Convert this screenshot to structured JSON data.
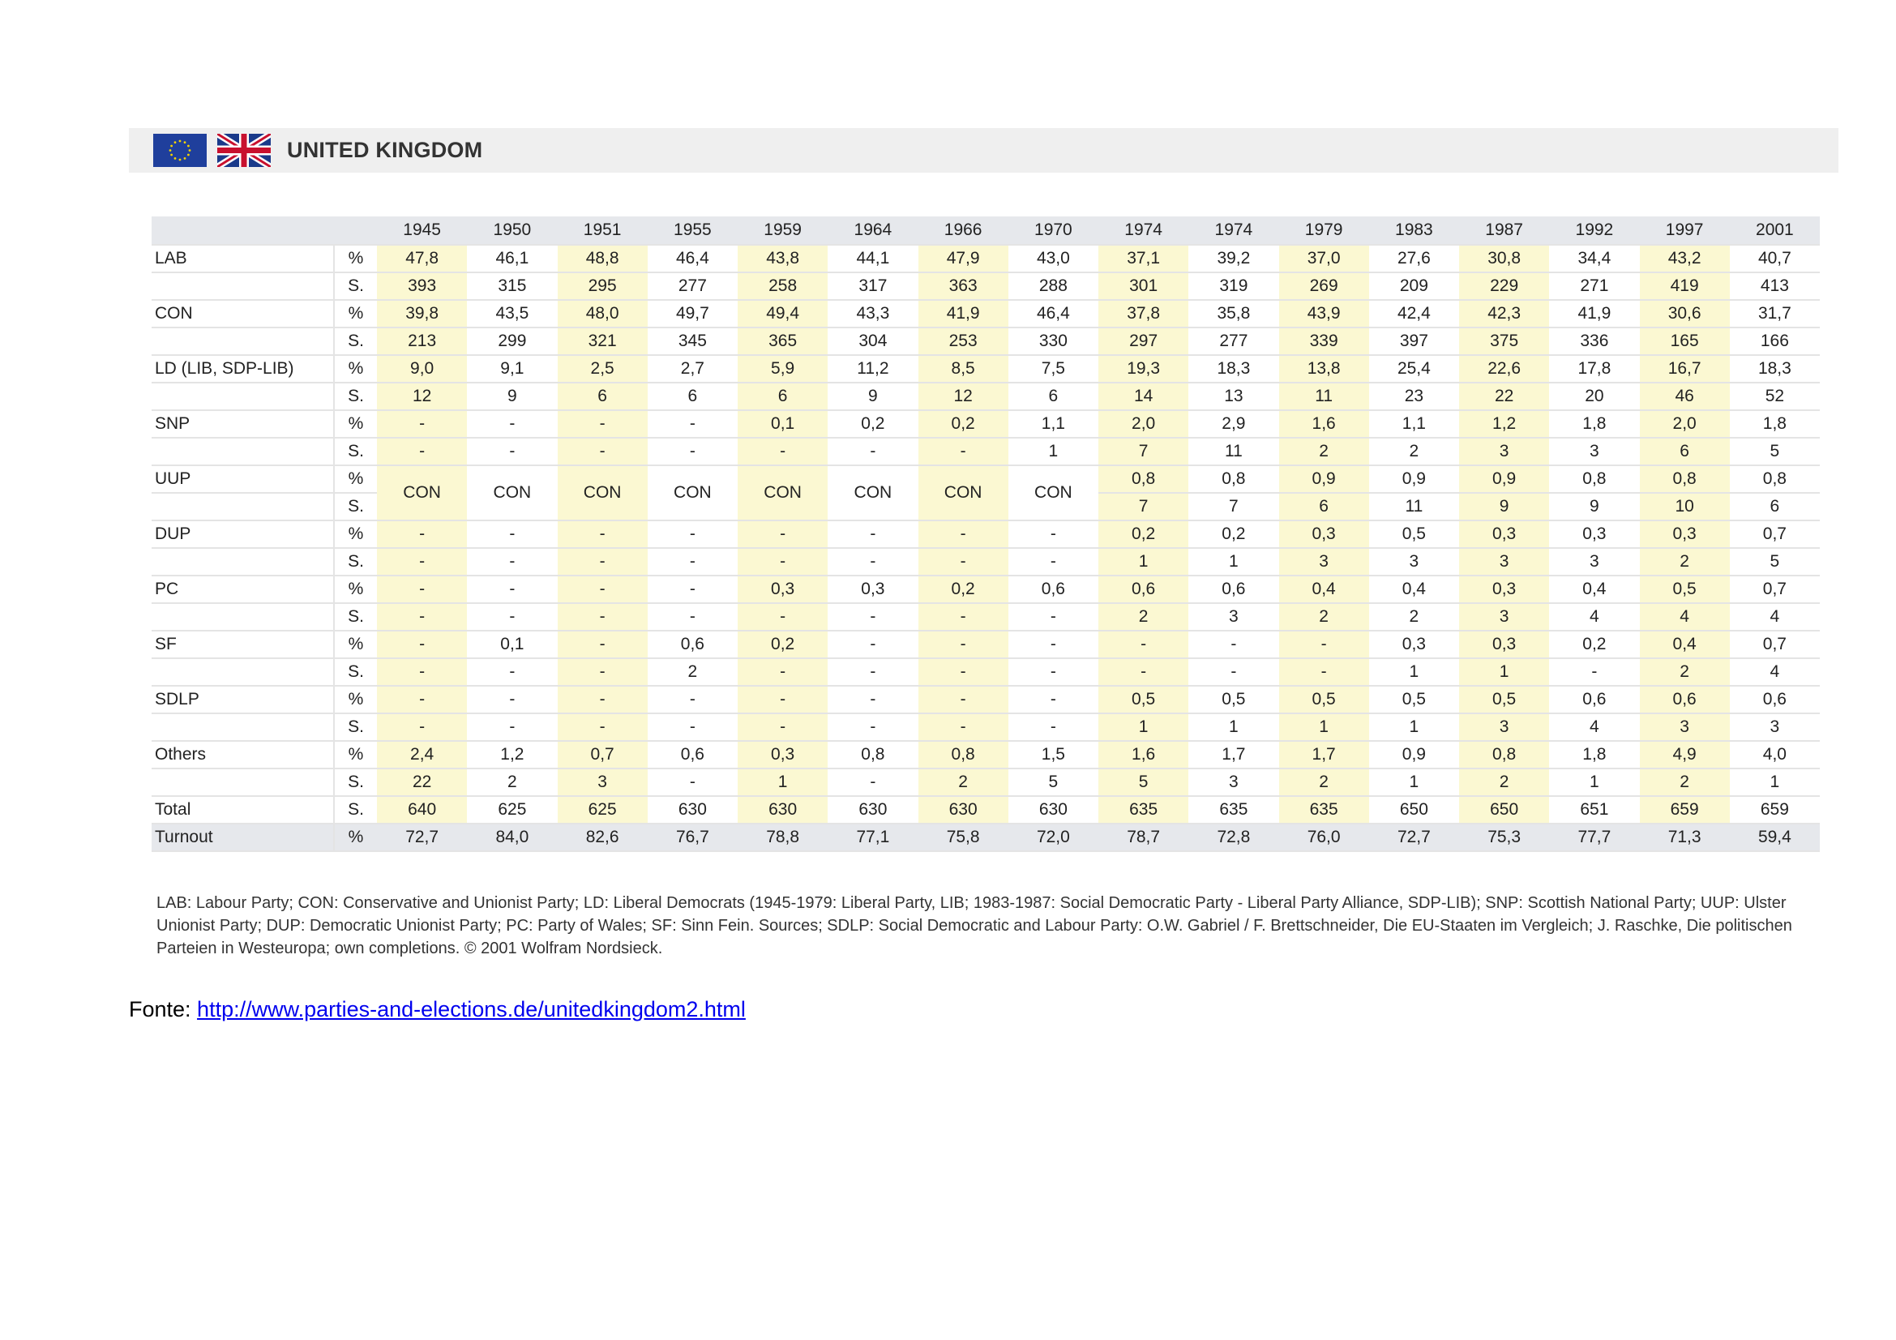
{
  "header": {
    "title": "UNITED KINGDOM",
    "icons": [
      "eu-flag-icon",
      "uk-flag-icon"
    ]
  },
  "colors": {
    "highlight": "#fbf8d2",
    "header_bg": "#e6e8ec",
    "title_bar": "#efefef",
    "link": "#0000ee"
  },
  "table": {
    "years": [
      "1945",
      "1950",
      "1951",
      "1955",
      "1959",
      "1964",
      "1966",
      "1970",
      "1974",
      "1974",
      "1979",
      "1983",
      "1987",
      "1992",
      "1997",
      "2001"
    ],
    "rows": [
      {
        "label": "LAB",
        "unit": "%",
        "values": [
          "47,8",
          "46,1",
          "48,8",
          "46,4",
          "43,8",
          "44,1",
          "47,9",
          "43,0",
          "37,1",
          "39,2",
          "37,0",
          "27,6",
          "30,8",
          "34,4",
          "43,2",
          "40,7"
        ]
      },
      {
        "label": "",
        "unit": "S.",
        "values": [
          "393",
          "315",
          "295",
          "277",
          "258",
          "317",
          "363",
          "288",
          "301",
          "319",
          "269",
          "209",
          "229",
          "271",
          "419",
          "413"
        ]
      },
      {
        "label": "CON",
        "unit": "%",
        "values": [
          "39,8",
          "43,5",
          "48,0",
          "49,7",
          "49,4",
          "43,3",
          "41,9",
          "46,4",
          "37,8",
          "35,8",
          "43,9",
          "42,4",
          "42,3",
          "41,9",
          "30,6",
          "31,7"
        ]
      },
      {
        "label": "",
        "unit": "S.",
        "values": [
          "213",
          "299",
          "321",
          "345",
          "365",
          "304",
          "253",
          "330",
          "297",
          "277",
          "339",
          "397",
          "375",
          "336",
          "165",
          "166"
        ]
      },
      {
        "label": "LD (LIB, SDP-LIB)",
        "unit": "%",
        "values": [
          "9,0",
          "9,1",
          "2,5",
          "2,7",
          "5,9",
          "11,2",
          "8,5",
          "7,5",
          "19,3",
          "18,3",
          "13,8",
          "25,4",
          "22,6",
          "17,8",
          "16,7",
          "18,3"
        ]
      },
      {
        "label": "",
        "unit": "S.",
        "values": [
          "12",
          "9",
          "6",
          "6",
          "6",
          "9",
          "12",
          "6",
          "14",
          "13",
          "11",
          "23",
          "22",
          "20",
          "46",
          "52"
        ]
      },
      {
        "label": "SNP",
        "unit": "%",
        "values": [
          "-",
          "-",
          "-",
          "-",
          "0,1",
          "0,2",
          "0,2",
          "1,1",
          "2,0",
          "2,9",
          "1,6",
          "1,1",
          "1,2",
          "1,8",
          "2,0",
          "1,8"
        ]
      },
      {
        "label": "",
        "unit": "S.",
        "values": [
          "-",
          "-",
          "-",
          "-",
          "-",
          "-",
          "-",
          "1",
          "7",
          "11",
          "2",
          "2",
          "3",
          "3",
          "6",
          "5"
        ]
      },
      {
        "label": "UUP",
        "unit": "%",
        "values": [
          "CON",
          "CON",
          "CON",
          "CON",
          "CON",
          "CON",
          "CON",
          "CON",
          "0,8",
          "0,8",
          "0,9",
          "0,9",
          "0,9",
          "0,8",
          "0,8",
          "0,8"
        ],
        "merge_down": 8
      },
      {
        "label": "",
        "unit": "S.",
        "values": [
          "",
          "",
          "",
          "",
          "",
          "",
          "",
          "",
          "7",
          "7",
          "6",
          "11",
          "9",
          "9",
          "10",
          "6"
        ]
      },
      {
        "label": "DUP",
        "unit": "%",
        "values": [
          "-",
          "-",
          "-",
          "-",
          "-",
          "-",
          "-",
          "-",
          "0,2",
          "0,2",
          "0,3",
          "0,5",
          "0,3",
          "0,3",
          "0,3",
          "0,7"
        ]
      },
      {
        "label": "",
        "unit": "S.",
        "values": [
          "-",
          "-",
          "-",
          "-",
          "-",
          "-",
          "-",
          "-",
          "1",
          "1",
          "3",
          "3",
          "3",
          "3",
          "2",
          "5"
        ]
      },
      {
        "label": "PC",
        "unit": "%",
        "values": [
          "-",
          "-",
          "-",
          "-",
          "0,3",
          "0,3",
          "0,2",
          "0,6",
          "0,6",
          "0,6",
          "0,4",
          "0,4",
          "0,3",
          "0,4",
          "0,5",
          "0,7"
        ]
      },
      {
        "label": "",
        "unit": "S.",
        "values": [
          "-",
          "-",
          "-",
          "-",
          "-",
          "-",
          "-",
          "-",
          "2",
          "3",
          "2",
          "2",
          "3",
          "4",
          "4",
          "4"
        ]
      },
      {
        "label": "SF",
        "unit": "%",
        "values": [
          "-",
          "0,1",
          "-",
          "0,6",
          "0,2",
          "-",
          "-",
          "-",
          "-",
          "-",
          "-",
          "0,3",
          "0,3",
          "0,2",
          "0,4",
          "0,7"
        ]
      },
      {
        "label": "",
        "unit": "S.",
        "values": [
          "-",
          "-",
          "-",
          "2",
          "-",
          "-",
          "-",
          "-",
          "-",
          "-",
          "-",
          "1",
          "1",
          "-",
          "2",
          "4"
        ]
      },
      {
        "label": "SDLP",
        "unit": "%",
        "values": [
          "-",
          "-",
          "-",
          "-",
          "-",
          "-",
          "-",
          "-",
          "0,5",
          "0,5",
          "0,5",
          "0,5",
          "0,5",
          "0,6",
          "0,6",
          "0,6"
        ]
      },
      {
        "label": "",
        "unit": "S.",
        "values": [
          "-",
          "-",
          "-",
          "-",
          "-",
          "-",
          "-",
          "-",
          "1",
          "1",
          "1",
          "1",
          "3",
          "4",
          "3",
          "3"
        ]
      },
      {
        "label": "Others",
        "unit": "%",
        "values": [
          "2,4",
          "1,2",
          "0,7",
          "0,6",
          "0,3",
          "0,8",
          "0,8",
          "1,5",
          "1,6",
          "1,7",
          "1,7",
          "0,9",
          "0,8",
          "1,8",
          "4,9",
          "4,0"
        ]
      },
      {
        "label": "",
        "unit": "S.",
        "values": [
          "22",
          "2",
          "3",
          "-",
          "1",
          "-",
          "2",
          "5",
          "5",
          "3",
          "2",
          "1",
          "2",
          "1",
          "2",
          "1"
        ]
      },
      {
        "label": "Total",
        "unit": "S.",
        "values": [
          "640",
          "625",
          "625",
          "630",
          "630",
          "630",
          "630",
          "630",
          "635",
          "635",
          "635",
          "650",
          "650",
          "651",
          "659",
          "659"
        ]
      },
      {
        "label": "Turnout",
        "unit": "%",
        "values": [
          "72,7",
          "84,0",
          "82,6",
          "76,7",
          "78,8",
          "77,1",
          "75,8",
          "72,0",
          "78,7",
          "72,8",
          "76,0",
          "72,7",
          "75,3",
          "77,7",
          "71,3",
          "59,4"
        ]
      }
    ]
  },
  "footnote": "LAB: Labour Party; CON: Conservative and Unionist Party; LD: Liberal Democrats (1945-1979: Liberal Party, LIB; 1983-1987: Social Democratic Party - Liberal Party Alliance, SDP-LIB); SNP: Scottish National Party; UUP: Ulster Unionist Party; DUP: Democratic Unionist Party; PC: Party of Wales; SF: Sinn Fein. Sources; SDLP: Social Democratic and Labour Party: O.W. Gabriel / F. Brettschneider, Die EU-Staaten im Vergleich; J. Raschke, Die politischen Parteien in Westeuropa; own completions. © 2001 Wolfram Nordsieck.",
  "source": {
    "label": "Fonte: ",
    "url": "http://www.parties-and-elections.de/unitedkingdom2.html"
  }
}
